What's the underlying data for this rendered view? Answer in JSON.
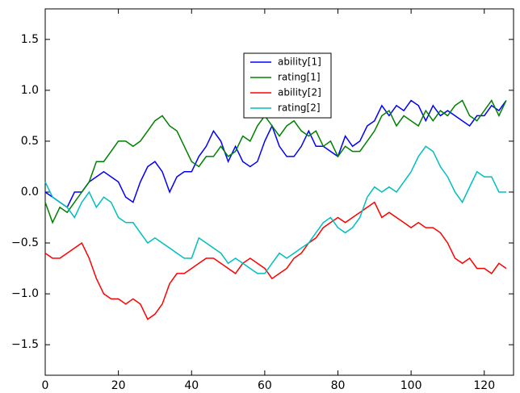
{
  "chart_data": {
    "type": "line",
    "x": [
      0,
      2,
      4,
      6,
      8,
      10,
      12,
      14,
      16,
      18,
      20,
      22,
      24,
      26,
      28,
      30,
      32,
      34,
      36,
      38,
      40,
      42,
      44,
      46,
      48,
      50,
      52,
      54,
      56,
      58,
      60,
      62,
      64,
      66,
      68,
      70,
      72,
      74,
      76,
      78,
      80,
      82,
      84,
      86,
      88,
      90,
      92,
      94,
      96,
      98,
      100,
      102,
      104,
      106,
      108,
      110,
      112,
      114,
      116,
      118,
      120,
      122,
      124,
      126
    ],
    "series": [
      {
        "name": "ability[1]",
        "color": "#0000ff",
        "values": [
          0,
          -0.05,
          -0.1,
          -0.15,
          0,
          0,
          0.1,
          0.15,
          0.2,
          0.15,
          0.1,
          -0.05,
          -0.1,
          0.1,
          0.25,
          0.3,
          0.2,
          0,
          0.15,
          0.2,
          0.2,
          0.35,
          0.45,
          0.6,
          0.5,
          0.3,
          0.45,
          0.3,
          0.25,
          0.3,
          0.5,
          0.65,
          0.45,
          0.35,
          0.35,
          0.45,
          0.6,
          0.45,
          0.45,
          0.4,
          0.35,
          0.55,
          0.45,
          0.5,
          0.65,
          0.7,
          0.85,
          0.75,
          0.85,
          0.8,
          0.9,
          0.85,
          0.7,
          0.85,
          0.75,
          0.8,
          0.75,
          0.7,
          0.65,
          0.75,
          0.75,
          0.85,
          0.8,
          0.9
        ]
      },
      {
        "name": "rating[1]",
        "color": "#008000",
        "values": [
          -0.1,
          -0.3,
          -0.15,
          -0.2,
          -0.1,
          0,
          0.1,
          0.3,
          0.3,
          0.4,
          0.5,
          0.5,
          0.45,
          0.5,
          0.6,
          0.7,
          0.75,
          0.65,
          0.6,
          0.45,
          0.3,
          0.25,
          0.35,
          0.35,
          0.45,
          0.35,
          0.4,
          0.55,
          0.5,
          0.65,
          0.75,
          0.65,
          0.55,
          0.65,
          0.7,
          0.6,
          0.55,
          0.6,
          0.45,
          0.5,
          0.35,
          0.45,
          0.4,
          0.4,
          0.5,
          0.6,
          0.75,
          0.8,
          0.65,
          0.75,
          0.7,
          0.65,
          0.8,
          0.7,
          0.8,
          0.75,
          0.85,
          0.9,
          0.75,
          0.7,
          0.8,
          0.9,
          0.75,
          0.9
        ]
      },
      {
        "name": "ability[2]",
        "color": "#ff0000",
        "values": [
          -0.6,
          -0.65,
          -0.65,
          -0.6,
          -0.55,
          -0.5,
          -0.65,
          -0.85,
          -1.0,
          -1.05,
          -1.05,
          -1.1,
          -1.05,
          -1.1,
          -1.25,
          -1.2,
          -1.1,
          -0.9,
          -0.8,
          -0.8,
          -0.75,
          -0.7,
          -0.65,
          -0.65,
          -0.7,
          -0.75,
          -0.8,
          -0.7,
          -0.65,
          -0.7,
          -0.75,
          -0.85,
          -0.8,
          -0.75,
          -0.65,
          -0.6,
          -0.5,
          -0.45,
          -0.35,
          -0.3,
          -0.25,
          -0.3,
          -0.25,
          -0.2,
          -0.15,
          -0.1,
          -0.25,
          -0.2,
          -0.25,
          -0.3,
          -0.35,
          -0.3,
          -0.35,
          -0.35,
          -0.4,
          -0.5,
          -0.65,
          -0.7,
          -0.65,
          -0.75,
          -0.75,
          -0.8,
          -0.7,
          -0.75
        ]
      },
      {
        "name": "rating[2]",
        "color": "#00bfbf",
        "values": [
          0.1,
          -0.05,
          -0.1,
          -0.15,
          -0.25,
          -0.1,
          0,
          -0.15,
          -0.05,
          -0.1,
          -0.25,
          -0.3,
          -0.3,
          -0.4,
          -0.5,
          -0.45,
          -0.5,
          -0.55,
          -0.6,
          -0.65,
          -0.65,
          -0.45,
          -0.5,
          -0.55,
          -0.6,
          -0.7,
          -0.65,
          -0.7,
          -0.75,
          -0.8,
          -0.8,
          -0.7,
          -0.6,
          -0.65,
          -0.6,
          -0.55,
          -0.5,
          -0.4,
          -0.3,
          -0.25,
          -0.35,
          -0.4,
          -0.35,
          -0.25,
          -0.05,
          0.05,
          0,
          0.05,
          0,
          0.1,
          0.2,
          0.35,
          0.45,
          0.4,
          0.25,
          0.15,
          0,
          -0.1,
          0.05,
          0.2,
          0.15,
          0.15,
          0,
          0
        ]
      }
    ],
    "xlim": [
      0,
      128
    ],
    "xticks": [
      0,
      20,
      40,
      60,
      80,
      100,
      120
    ],
    "ylim": [
      -1.8,
      1.8
    ],
    "yticks": [
      {
        "value": -1.5,
        "label": "−1.5"
      },
      {
        "value": -1,
        "label": "−1.0"
      },
      {
        "value": -0.5,
        "label": "−0.5"
      },
      {
        "value": 0,
        "label": "0.0"
      },
      0.5,
      {
        "value": 1,
        "label": "1.0"
      },
      1.5
    ],
    "legend": "upper center",
    "grid": false
  }
}
